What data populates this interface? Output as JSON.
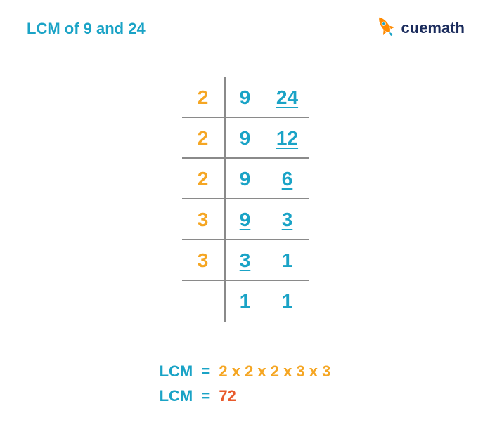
{
  "colors": {
    "title": "#1aa3c6",
    "logoText": "#1a2b5c",
    "rocketBody": "#ff8a00",
    "rocketFlame": "#1aa3c6",
    "divisor": "#f5a623",
    "number": "#1aa3c6",
    "grid": "#8a8a8a",
    "lcmLabel": "#1aa3c6",
    "lcmExpr": "#f5a623",
    "lcmValue": "#e85a2c"
  },
  "title": "LCM of 9 and 24",
  "logo": {
    "text": "cuemath"
  },
  "ladder": {
    "rows": [
      {
        "divisor": "2",
        "cells": [
          {
            "v": "9",
            "u": false
          },
          {
            "v": "24",
            "u": true
          }
        ]
      },
      {
        "divisor": "2",
        "cells": [
          {
            "v": "9",
            "u": false
          },
          {
            "v": "12",
            "u": true
          }
        ]
      },
      {
        "divisor": "2",
        "cells": [
          {
            "v": "9",
            "u": false
          },
          {
            "v": "6",
            "u": true
          }
        ]
      },
      {
        "divisor": "3",
        "cells": [
          {
            "v": "9",
            "u": true
          },
          {
            "v": "3",
            "u": true
          }
        ]
      },
      {
        "divisor": "3",
        "cells": [
          {
            "v": "3",
            "u": true
          },
          {
            "v": "1",
            "u": false
          }
        ]
      },
      {
        "divisor": "",
        "cells": [
          {
            "v": "1",
            "u": false
          },
          {
            "v": "1",
            "u": false
          }
        ]
      }
    ]
  },
  "result": {
    "label": "LCM",
    "eq": "=",
    "expression": "2 x 2 x 2 x 3 x 3",
    "value": "72"
  }
}
